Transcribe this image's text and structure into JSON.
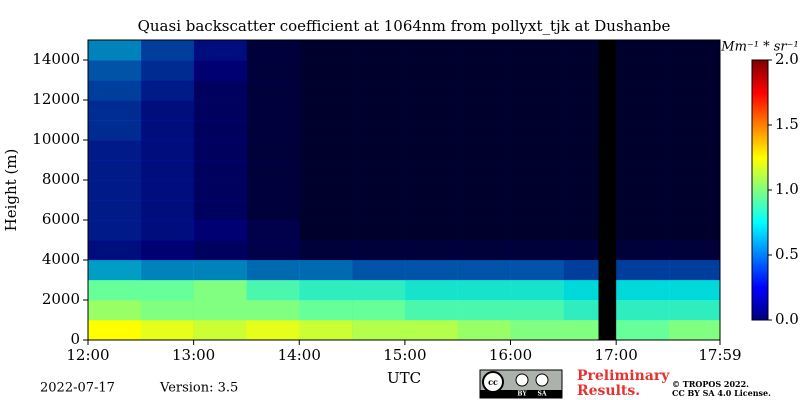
{
  "chart_data": {
    "type": "heatmap",
    "title": "Quasi backscatter coefficient at 1064nm from pollyxt_tjk at Dushanbe",
    "x_label": "UTC",
    "y_label": "Height (m)",
    "colorbar_label": "Mm⁻¹ * sr⁻¹",
    "colormap": "jet",
    "x_edges": [
      12,
      12.5,
      13,
      13.5,
      14,
      14.5,
      15,
      15.5,
      16,
      16.5,
      16.83,
      17,
      17.5,
      17.983
    ],
    "y_edges": [
      0,
      1000,
      2000,
      3000,
      4000,
      5000,
      6000,
      7000,
      8000,
      9000,
      10000,
      11000,
      12000,
      13000,
      14000,
      15000
    ],
    "z": [
      [
        1.25,
        1.2,
        1.15,
        1.2,
        1.15,
        1.1,
        1.1,
        1.05,
        1.0,
        1.0,
        null,
        0.95,
        1.0
      ],
      [
        1.05,
        1.0,
        1.0,
        1.0,
        0.95,
        0.95,
        0.9,
        0.9,
        0.9,
        0.85,
        null,
        0.85,
        0.85
      ],
      [
        0.95,
        0.95,
        1.0,
        0.9,
        0.85,
        0.85,
        0.8,
        0.8,
        0.8,
        0.75,
        null,
        0.75,
        0.75
      ],
      [
        0.65,
        0.6,
        0.6,
        0.55,
        0.55,
        0.5,
        0.5,
        0.5,
        0.5,
        0.45,
        null,
        0.45,
        0.45
      ],
      [
        0.3,
        0.25,
        0.2,
        0.15,
        0.1,
        0.1,
        0.1,
        0.1,
        0.1,
        0.1,
        null,
        0.1,
        0.1
      ],
      [
        0.35,
        0.3,
        0.25,
        0.15,
        0.05,
        0.05,
        0.05,
        0.05,
        0.05,
        0.05,
        null,
        0.05,
        0.05
      ],
      [
        0.35,
        0.3,
        0.2,
        0.1,
        0.05,
        0.05,
        0.05,
        0.05,
        0.05,
        0.05,
        null,
        0.05,
        0.05
      ],
      [
        0.35,
        0.3,
        0.2,
        0.1,
        0.05,
        0.05,
        0.05,
        0.05,
        0.05,
        0.05,
        null,
        0.05,
        0.05
      ],
      [
        0.35,
        0.3,
        0.2,
        0.1,
        0.05,
        0.05,
        0.05,
        0.05,
        0.05,
        0.05,
        null,
        0.05,
        0.05
      ],
      [
        0.35,
        0.3,
        0.2,
        0.1,
        0.05,
        0.05,
        0.05,
        0.05,
        0.05,
        0.05,
        null,
        0.05,
        0.05
      ],
      [
        0.4,
        0.3,
        0.2,
        0.1,
        0.05,
        0.05,
        0.05,
        0.05,
        0.05,
        0.05,
        null,
        0.05,
        0.05
      ],
      [
        0.4,
        0.3,
        0.2,
        0.1,
        0.05,
        0.05,
        0.05,
        0.05,
        0.05,
        0.05,
        null,
        0.05,
        0.05
      ],
      [
        0.45,
        0.35,
        0.2,
        0.1,
        0.05,
        0.05,
        0.05,
        0.05,
        0.05,
        0.05,
        null,
        0.05,
        0.05
      ],
      [
        0.5,
        0.4,
        0.25,
        0.1,
        0.05,
        0.05,
        0.05,
        0.05,
        0.05,
        0.05,
        null,
        0.05,
        0.05
      ],
      [
        0.6,
        0.45,
        0.3,
        0.1,
        0.05,
        0.05,
        0.05,
        0.05,
        0.05,
        0.05,
        null,
        0.05,
        0.05
      ]
    ],
    "xlim": [
      12,
      17.983
    ],
    "ylim": [
      0,
      15000
    ],
    "clim": [
      0,
      2
    ],
    "xticks": [
      {
        "value": 12,
        "label": "12:00"
      },
      {
        "value": 13,
        "label": "13:00"
      },
      {
        "value": 14,
        "label": "14:00"
      },
      {
        "value": 15,
        "label": "15:00"
      },
      {
        "value": 16,
        "label": "16:00"
      },
      {
        "value": 17,
        "label": "17:00"
      },
      {
        "value": 17.983,
        "label": "17:59"
      }
    ],
    "yticks": [
      0,
      2000,
      4000,
      6000,
      8000,
      10000,
      12000,
      14000
    ],
    "cticks": [
      {
        "value": 0,
        "label": "0.0"
      },
      {
        "value": 0.5,
        "label": "0.5"
      },
      {
        "value": 1,
        "label": "1.0"
      },
      {
        "value": 1.5,
        "label": "1.5"
      },
      {
        "value": 2,
        "label": "2.0"
      }
    ],
    "date": "2022-07-17",
    "version": "Version: 3.5",
    "preliminary": [
      "Preliminary",
      "Results."
    ],
    "license_badge": [
      "cc",
      "BY",
      "SA"
    ],
    "copyright": [
      "© TROPOS 2022.",
      "CC BY SA 4.0 License."
    ]
  }
}
